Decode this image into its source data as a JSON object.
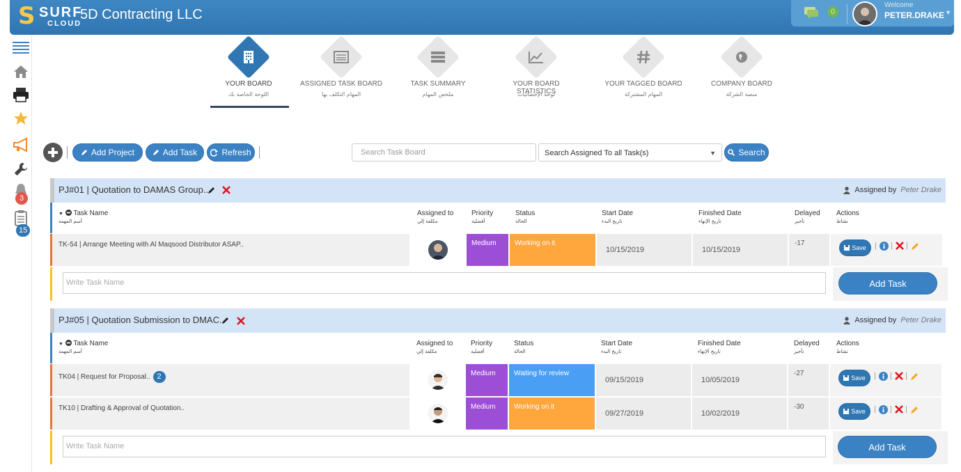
{
  "header": {
    "logo_s": "S",
    "logo_surf": "SURF",
    "logo_cloud": "CLOUD",
    "company": "5D Contracting LLC",
    "message_count": "0",
    "user_greeting": "Welcome",
    "user_name": "PETER.DRAKE"
  },
  "sidebar": {
    "items": [
      {
        "name": "menu-icon"
      },
      {
        "name": "home-icon"
      },
      {
        "name": "printer-icon"
      },
      {
        "name": "star-icon"
      },
      {
        "name": "megaphone-icon"
      },
      {
        "name": "wrench-icon"
      },
      {
        "name": "bell-icon",
        "badge": "3"
      },
      {
        "name": "clipboard-icon",
        "badge": "15"
      }
    ]
  },
  "tabs": [
    {
      "label": "YOUR BOARD",
      "label_ar": "اللوحة الخاصة بك",
      "icon": "building-icon",
      "active": true
    },
    {
      "label": "ASSIGNED TASK BOARD",
      "label_ar": "المهام التكلف بها",
      "icon": "list-icon",
      "active": false
    },
    {
      "label": "TASK SUMMARY",
      "label_ar": "ملخص المهام",
      "icon": "summary-icon",
      "active": false
    },
    {
      "label": "YOUR BOARD STATISTICS",
      "label_ar": "لوحة الإحصائيات",
      "icon": "chart-icon",
      "active": false
    },
    {
      "label": "YOUR TAGGED BOARD",
      "label_ar": "المهام المشتركة",
      "icon": "hashtag-icon",
      "active": false
    },
    {
      "label": "COMPANY BOARD",
      "label_ar": "منصة الشركة",
      "icon": "globe-icon",
      "active": false
    }
  ],
  "toolbar": {
    "add_project": "Add Project",
    "add_task": "Add Task",
    "refresh": "Refresh",
    "search_placeholder": "Search Task Board",
    "assign_select_value": "Search Assigned To all Task(s)",
    "search_button": "Search"
  },
  "columns": {
    "task_name": "Task Name",
    "task_name_ar": "أسم المهمة",
    "assigned_to": "Assigned to",
    "assigned_to_ar": "مكلفة إلي",
    "priority": "Priority",
    "priority_ar": "أفضلية",
    "status": "Status",
    "status_ar": "الحالة",
    "start_date": "Start Date",
    "start_date_ar": "تاريخ البدء",
    "finished_date": "Finished Date",
    "finished_date_ar": "تاريخ الإنهاء",
    "delayed": "Delayed",
    "delayed_ar": "تأخير",
    "actions": "Actions",
    "actions_ar": "نشاط"
  },
  "projects": [
    {
      "title": "PJ#01 | Quotation to DAMAS Group..",
      "assigned_by_label": "Assigned by",
      "assigned_by": "Peter Drake",
      "tasks": [
        {
          "name": "TK-54 | Arrange Meeting with Al Maqsood Distributor ASAP..",
          "badge": "",
          "priority": "Medium",
          "status": "Working on it",
          "status_color": "#ffa63d",
          "start": "10/15/2019",
          "finished": "10/15/2019",
          "delayed": "-17"
        }
      ],
      "write_placeholder": "Write Task Name",
      "add_task_label": "Add Task"
    },
    {
      "title": "PJ#05 | Quotation Submission to DMAC..",
      "assigned_by_label": "Assigned by",
      "assigned_by": "Peter Drake",
      "tasks": [
        {
          "name": "TK04 | Request for Proposal..",
          "badge": "2",
          "priority": "Medium",
          "status": "Waiting for review",
          "status_color": "#4a9ff5",
          "start": "09/15/2019",
          "finished": "10/05/2019",
          "delayed": "-27"
        },
        {
          "name": "TK10 | Drafting & Approval of Quotation..",
          "badge": "",
          "priority": "Medium",
          "status": "Working on it",
          "status_color": "#ffa63d",
          "start": "09/27/2019",
          "finished": "10/02/2019",
          "delayed": "-30"
        }
      ],
      "write_placeholder": "Write Task Name",
      "add_task_label": "Add Task"
    }
  ],
  "save_label": "Save",
  "colors": {
    "primary": "#3b82c4",
    "priority_medium": "#9c4fd6",
    "status_working": "#ffa63d",
    "status_waiting": "#4a9ff5",
    "header_bg": "#2f76b3"
  }
}
